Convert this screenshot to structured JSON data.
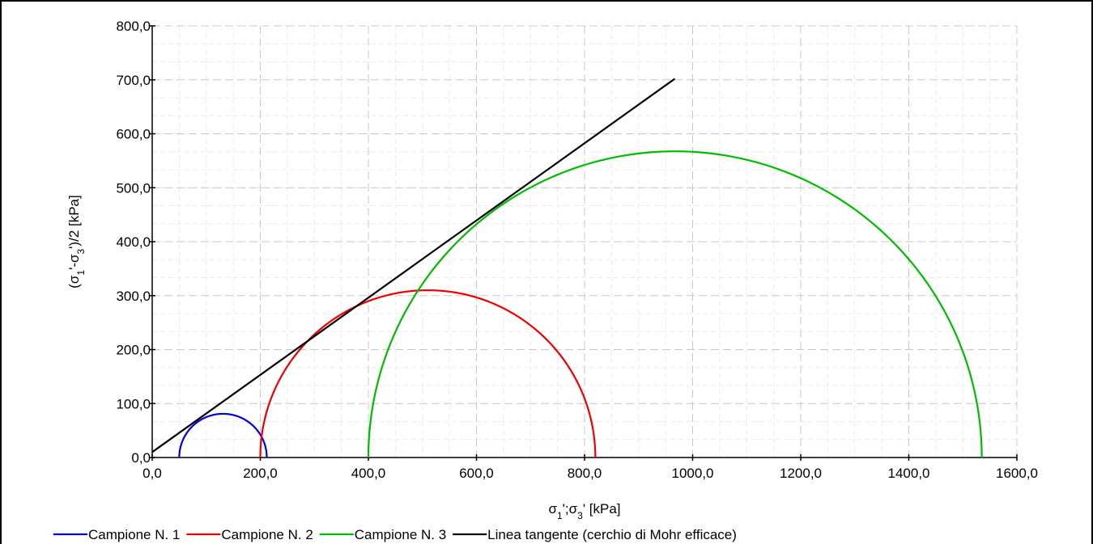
{
  "chart_data": {
    "type": "line",
    "title": "",
    "xlabel_parts": [
      "σ",
      "1",
      "';σ",
      "3",
      "' [kPa]"
    ],
    "ylabel_parts": [
      "(σ",
      "1",
      "'-σ",
      "3",
      "')/2 [kPa]"
    ],
    "xlim": [
      0,
      1600
    ],
    "ylim": [
      0,
      800
    ],
    "x_ticks": [
      0,
      200,
      400,
      600,
      800,
      1000,
      1200,
      1400,
      1600
    ],
    "x_tick_labels": [
      "0,0",
      "200,0",
      "400,0",
      "600,0",
      "800,0",
      "1000,0",
      "1200,0",
      "1400,0",
      "1600,0"
    ],
    "y_ticks": [
      0,
      100,
      200,
      300,
      400,
      500,
      600,
      700,
      800
    ],
    "y_tick_labels": [
      "0,0",
      "100,0",
      "200,0",
      "300,0",
      "400,0",
      "500,0",
      "600,0",
      "700,0",
      "800,0"
    ],
    "grid": true,
    "legend_position": "bottom",
    "series": [
      {
        "name": "Campione N. 1",
        "kind": "mohr-circle",
        "sigma3": 50,
        "sigma1": 212,
        "color": "#0000dd"
      },
      {
        "name": "Campione N. 2",
        "kind": "mohr-circle",
        "sigma3": 200,
        "sigma1": 820,
        "color": "#ee0000"
      },
      {
        "name": "Campione N. 3",
        "kind": "mohr-circle",
        "sigma3": 400,
        "sigma1": 1535,
        "color": "#00bb00"
      },
      {
        "name": "Linea tangente (cerchio di Mohr efficace)",
        "kind": "line",
        "x": [
          0,
          967
        ],
        "y": [
          10,
          702
        ],
        "color": "#000000"
      }
    ]
  }
}
